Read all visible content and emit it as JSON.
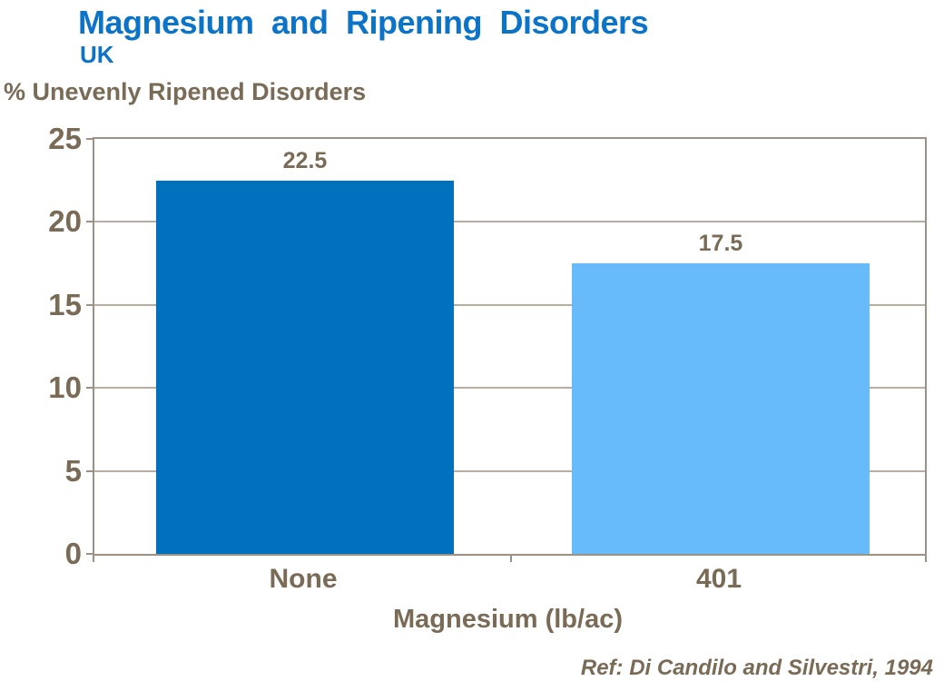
{
  "chart_data": {
    "type": "bar",
    "title": "Magnesium and Ripening Disorders",
    "subtitle": "UK",
    "y_axis_caption": "% Unevenly Ripened Disorders",
    "xlabel": "Magnesium (lb/ac)",
    "categories": [
      "None",
      "401"
    ],
    "values": [
      22.5,
      17.5
    ],
    "value_labels": [
      "22.5",
      "17.5"
    ],
    "ytick_labels": [
      "25",
      "20",
      "15",
      "10",
      "5",
      "0"
    ],
    "ylim": [
      0,
      25
    ],
    "ytick_step": 5,
    "grid": "horizontal",
    "legend_position": "none",
    "bar_colors": [
      "#0072bd",
      "#67bbfa"
    ],
    "annotation": "Ref: Di Candilo and Silvestri, 1994"
  },
  "colors": {
    "title_blue": "#0c74c8",
    "text_brown": "#7a6b57",
    "axis_line": "#9d9184",
    "gridline": "#b7ada1",
    "bar_none": "#0072bd",
    "bar_401": "#67bbfa",
    "background": "#ffffff"
  }
}
